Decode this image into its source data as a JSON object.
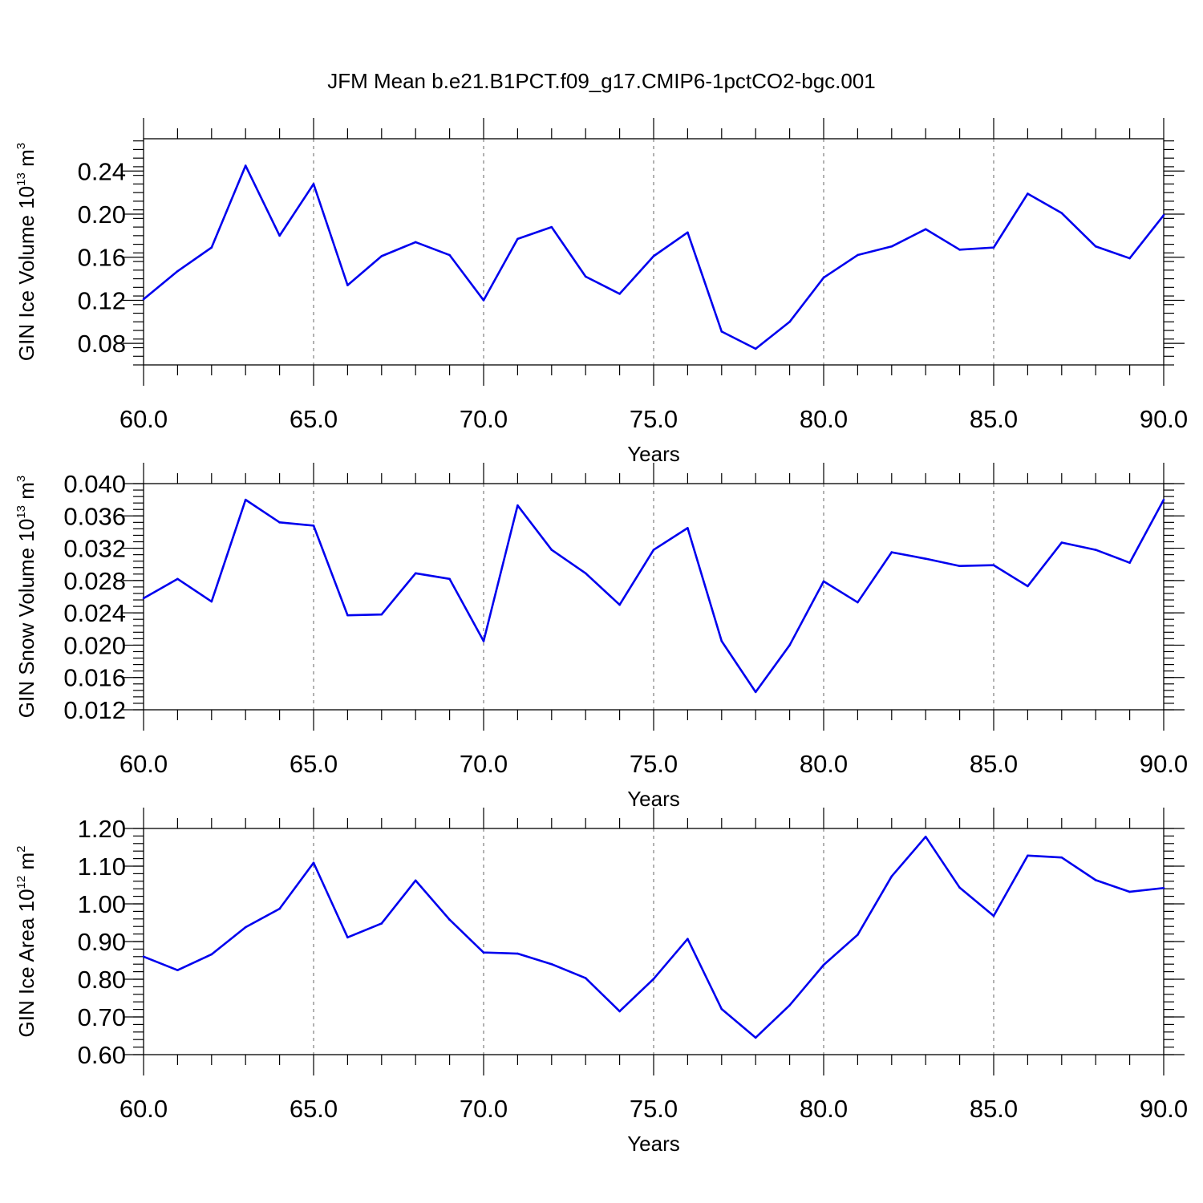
{
  "figure": {
    "title": "JFM Mean b.e21.B1PCT.f09_g17.CMIP6-1pctCO2-bgc.001",
    "line_color": "#0000ee"
  },
  "chart_data": [
    {
      "type": "line",
      "title": "",
      "xlabel": "Years",
      "ylabel_main": "GIN Ice Volume 10",
      "ylabel_sup": "13",
      "ylabel_unit": " m",
      "ylabel_unit_sup": "3",
      "xlim": [
        60,
        90
      ],
      "ylim": [
        0.06,
        0.27
      ],
      "x_ticks": [
        60,
        65,
        70,
        75,
        80,
        85,
        90
      ],
      "x_tick_labels": [
        "60.0",
        "65.0",
        "70.0",
        "75.0",
        "80.0",
        "85.0",
        "90.0"
      ],
      "y_ticks": [
        0.08,
        0.12,
        0.16,
        0.2,
        0.24
      ],
      "y_tick_labels": [
        "0.08",
        "0.12",
        "0.16",
        "0.20",
        "0.24"
      ],
      "y_minor_step": 0.008,
      "grid": "vertical dashed at major x ticks",
      "x": [
        60,
        61,
        62,
        63,
        64,
        65,
        66,
        67,
        68,
        69,
        70,
        71,
        72,
        73,
        74,
        75,
        76,
        77,
        78,
        79,
        80,
        81,
        82,
        83,
        84,
        85,
        86,
        87,
        88,
        89,
        90
      ],
      "series": [
        {
          "values": [
            0.121,
            0.147,
            0.169,
            0.245,
            0.18,
            0.228,
            0.134,
            0.161,
            0.174,
            0.162,
            0.12,
            0.177,
            0.188,
            0.142,
            0.126,
            0.161,
            0.183,
            0.091,
            0.075,
            0.1,
            0.141,
            0.162,
            0.17,
            0.186,
            0.167,
            0.169,
            0.219,
            0.201,
            0.17,
            0.159,
            0.199
          ]
        }
      ]
    },
    {
      "type": "line",
      "title": "",
      "xlabel": "Years",
      "ylabel_main": "GIN Snow Volume 10",
      "ylabel_sup": "13",
      "ylabel_unit": " m",
      "ylabel_unit_sup": "3",
      "xlim": [
        60,
        90
      ],
      "ylim": [
        0.012,
        0.04
      ],
      "x_ticks": [
        60,
        65,
        70,
        75,
        80,
        85,
        90
      ],
      "x_tick_labels": [
        "60.0",
        "65.0",
        "70.0",
        "75.0",
        "80.0",
        "85.0",
        "90.0"
      ],
      "y_ticks": [
        0.012,
        0.016,
        0.02,
        0.024,
        0.028,
        0.032,
        0.036,
        0.04
      ],
      "y_tick_labels": [
        "0.012",
        "0.016",
        "0.020",
        "0.024",
        "0.028",
        "0.032",
        "0.036",
        "0.040"
      ],
      "y_minor_step": 0.0008,
      "grid": "vertical dashed at major x ticks",
      "x": [
        60,
        61,
        62,
        63,
        64,
        65,
        66,
        67,
        68,
        69,
        70,
        71,
        72,
        73,
        74,
        75,
        76,
        77,
        78,
        79,
        80,
        81,
        82,
        83,
        84,
        85,
        86,
        87,
        88,
        89,
        90
      ],
      "series": [
        {
          "values": [
            0.0258,
            0.0282,
            0.0254,
            0.038,
            0.0352,
            0.0348,
            0.0237,
            0.0238,
            0.0289,
            0.0282,
            0.0205,
            0.0373,
            0.0318,
            0.0289,
            0.025,
            0.0318,
            0.0345,
            0.0205,
            0.0142,
            0.02,
            0.0279,
            0.0253,
            0.0315,
            0.0307,
            0.0298,
            0.0299,
            0.0273,
            0.0327,
            0.0318,
            0.0302,
            0.038
          ]
        }
      ]
    },
    {
      "type": "line",
      "title": "",
      "xlabel": "Years",
      "ylabel_main": "GIN Ice Area 10",
      "ylabel_sup": "12",
      "ylabel_unit": " m",
      "ylabel_unit_sup": "2",
      "xlim": [
        60,
        90
      ],
      "ylim": [
        0.6,
        1.2
      ],
      "x_ticks": [
        60,
        65,
        70,
        75,
        80,
        85,
        90
      ],
      "x_tick_labels": [
        "60.0",
        "65.0",
        "70.0",
        "75.0",
        "80.0",
        "85.0",
        "90.0"
      ],
      "y_ticks": [
        0.6,
        0.7,
        0.8,
        0.9,
        1.0,
        1.1,
        1.2
      ],
      "y_tick_labels": [
        "0.60",
        "0.70",
        "0.80",
        "0.90",
        "1.00",
        "1.10",
        "1.20"
      ],
      "y_minor_step": 0.02,
      "grid": "vertical dashed at major x ticks",
      "x": [
        60,
        61,
        62,
        63,
        64,
        65,
        66,
        67,
        68,
        69,
        70,
        71,
        72,
        73,
        74,
        75,
        76,
        77,
        78,
        79,
        80,
        81,
        82,
        83,
        84,
        85,
        86,
        87,
        88,
        89,
        90
      ],
      "series": [
        {
          "values": [
            0.86,
            0.824,
            0.866,
            0.938,
            0.987,
            1.109,
            0.911,
            0.948,
            1.062,
            0.958,
            0.871,
            0.868,
            0.84,
            0.803,
            0.715,
            0.801,
            0.907,
            0.721,
            0.645,
            0.731,
            0.838,
            0.918,
            1.073,
            1.178,
            1.043,
            0.968,
            1.128,
            1.123,
            1.063,
            1.032,
            1.042
          ]
        }
      ]
    }
  ]
}
